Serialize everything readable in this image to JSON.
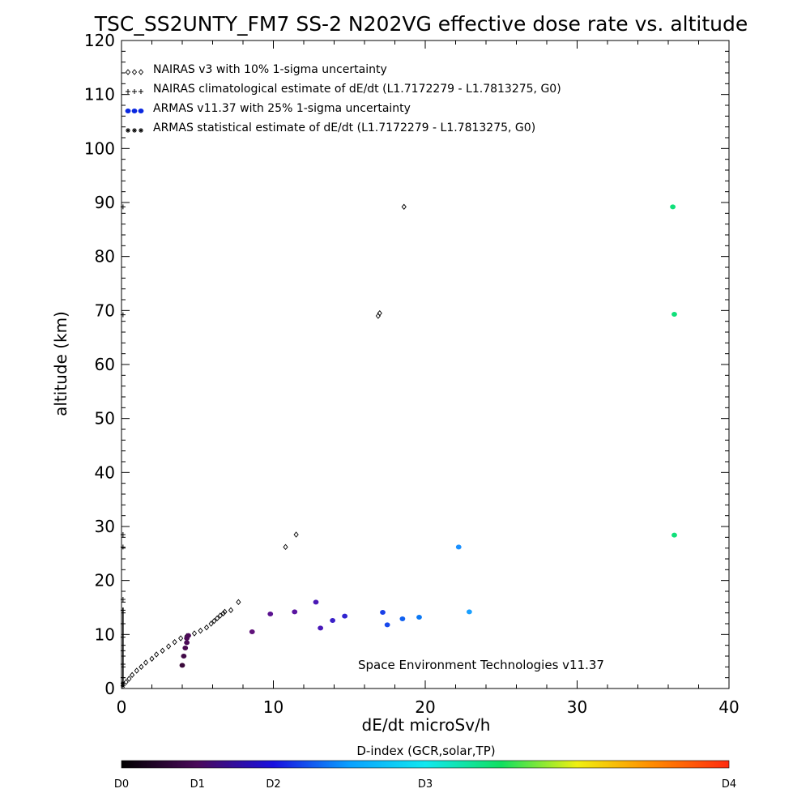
{
  "chart_data": {
    "type": "scatter",
    "title": "TSC_SS2UNTY_FM7 SS-2 N202VG effective dose rate vs. altitude",
    "xlabel": "dE/dt microSv/h",
    "ylabel": "altitude (km)",
    "xlim": [
      0,
      40
    ],
    "ylim": [
      0,
      120
    ],
    "xticks": [
      "0",
      "10",
      "20",
      "30",
      "40"
    ],
    "yticks": [
      "0",
      "10",
      "20",
      "30",
      "40",
      "50",
      "60",
      "70",
      "80",
      "90",
      "100",
      "110",
      "120"
    ],
    "grid": false,
    "legend_position": "top-left",
    "legend": [
      {
        "symbol": "◊◊◊",
        "label": "NAIRAS v3 with 10% 1-sigma uncertainty"
      },
      {
        "symbol": "+++",
        "label": "NAIRAS climatological estimate of dE/dt (L1.7172279 - L1.7813275, G0)"
      },
      {
        "symbol": "●●●",
        "label": "ARMAS v11.37 with 25% 1-sigma uncertainty"
      },
      {
        "symbol": "***",
        "label": "ARMAS statistical estimate of dE/dt (L1.7172279 - L1.7813275, G0)"
      }
    ],
    "annotation": "Space Environment Technologies v11.37",
    "series": [
      {
        "name": "NAIRAS v3 with 10% 1-sigma uncertainty",
        "marker": "diamond",
        "color": "#000000",
        "points": [
          [
            0.3,
            1.2
          ],
          [
            0.5,
            1.8
          ],
          [
            0.7,
            2.5
          ],
          [
            1.0,
            3.3
          ],
          [
            1.3,
            4.0
          ],
          [
            1.6,
            4.8
          ],
          [
            2.0,
            5.5
          ],
          [
            2.3,
            6.3
          ],
          [
            2.7,
            7.0
          ],
          [
            3.1,
            7.8
          ],
          [
            3.5,
            8.6
          ],
          [
            3.9,
            9.3
          ],
          [
            4.3,
            9.7
          ],
          [
            4.8,
            10.2
          ],
          [
            5.2,
            10.7
          ],
          [
            5.6,
            11.3
          ],
          [
            5.9,
            12.0
          ],
          [
            6.1,
            12.5
          ],
          [
            6.3,
            13.0
          ],
          [
            6.5,
            13.5
          ],
          [
            6.7,
            13.9
          ],
          [
            6.8,
            14.2
          ],
          [
            7.2,
            14.5
          ],
          [
            7.7,
            16.0
          ],
          [
            10.8,
            26.2
          ],
          [
            11.5,
            28.5
          ],
          [
            16.9,
            69.0
          ],
          [
            17.0,
            69.5
          ],
          [
            18.6,
            89.2
          ]
        ]
      },
      {
        "name": "NAIRAS climatological estimate of dE/dt (L1.7172279 - L1.7813275, G0)",
        "marker": "plus",
        "color": "#000000",
        "points": [
          [
            0.1,
            14.5
          ],
          [
            0.1,
            12.0
          ],
          [
            0.1,
            9.5
          ],
          [
            0.1,
            7.0
          ],
          [
            0.1,
            4.5
          ],
          [
            0.1,
            2.0
          ],
          [
            0.1,
            16.5
          ],
          [
            0.1,
            28.5
          ],
          [
            0.1,
            26.2
          ],
          [
            0.1,
            69.2
          ],
          [
            0.1,
            89.2
          ]
        ]
      },
      {
        "name": "ARMAS v11.37 with 25% 1-sigma uncertainty",
        "marker": "circle",
        "points": [
          {
            "x": 4.0,
            "y": 4.3,
            "color": "#3a0a3a"
          },
          {
            "x": 4.1,
            "y": 6.0,
            "color": "#420a48"
          },
          {
            "x": 4.2,
            "y": 7.5,
            "color": "#4a0a52"
          },
          {
            "x": 4.3,
            "y": 8.5,
            "color": "#4a0a55"
          },
          {
            "x": 4.3,
            "y": 9.3,
            "color": "#4c0a58"
          },
          {
            "x": 4.4,
            "y": 9.8,
            "color": "#4c0a58"
          },
          {
            "x": 8.6,
            "y": 10.5,
            "color": "#60127a"
          },
          {
            "x": 9.8,
            "y": 13.8,
            "color": "#5a1290"
          },
          {
            "x": 11.4,
            "y": 14.2,
            "color": "#5a15a0"
          },
          {
            "x": 12.8,
            "y": 16.0,
            "color": "#4a18b5"
          },
          {
            "x": 13.1,
            "y": 11.2,
            "color": "#4818b8"
          },
          {
            "x": 13.9,
            "y": 12.6,
            "color": "#3a20c8"
          },
          {
            "x": 14.7,
            "y": 13.4,
            "color": "#3024d0"
          },
          {
            "x": 17.2,
            "y": 14.1,
            "color": "#1a40e8"
          },
          {
            "x": 17.5,
            "y": 11.8,
            "color": "#1848ec"
          },
          {
            "x": 18.5,
            "y": 12.9,
            "color": "#1060f0"
          },
          {
            "x": 19.6,
            "y": 13.2,
            "color": "#0a78f4"
          },
          {
            "x": 22.2,
            "y": 26.2,
            "color": "#1a90ff"
          },
          {
            "x": 22.9,
            "y": 14.2,
            "color": "#1aa0ff"
          },
          {
            "x": 36.3,
            "y": 89.2,
            "color": "#10e07a"
          },
          {
            "x": 36.4,
            "y": 69.3,
            "color": "#10e07a"
          },
          {
            "x": 36.4,
            "y": 28.4,
            "color": "#10e07a"
          }
        ]
      },
      {
        "name": "ARMAS statistical estimate of dE/dt (L1.7172279 - L1.7813275, G0)",
        "marker": "asterisk",
        "color": "#000000",
        "points": [
          [
            0.1,
            0.5
          ],
          [
            0.1,
            1.0
          ]
        ]
      }
    ],
    "colorbar": {
      "label": "D-index (GCR,solar,TP)",
      "stops": [
        "#000000",
        "#4a0a5a",
        "#1a10e0",
        "#0aa0ff",
        "#10e8f0",
        "#10e060",
        "#f0f010",
        "#ff8a00",
        "#ff2a10"
      ],
      "tick_labels": [
        {
          "label": "D0",
          "value": 0
        },
        {
          "label": "D1",
          "value": 0.25
        },
        {
          "label": "D2",
          "value": 0.5
        },
        {
          "label": "D3",
          "value": 1.0
        },
        {
          "label": "D4",
          "value": 2.0
        }
      ],
      "range": [
        0,
        2.0
      ]
    }
  }
}
